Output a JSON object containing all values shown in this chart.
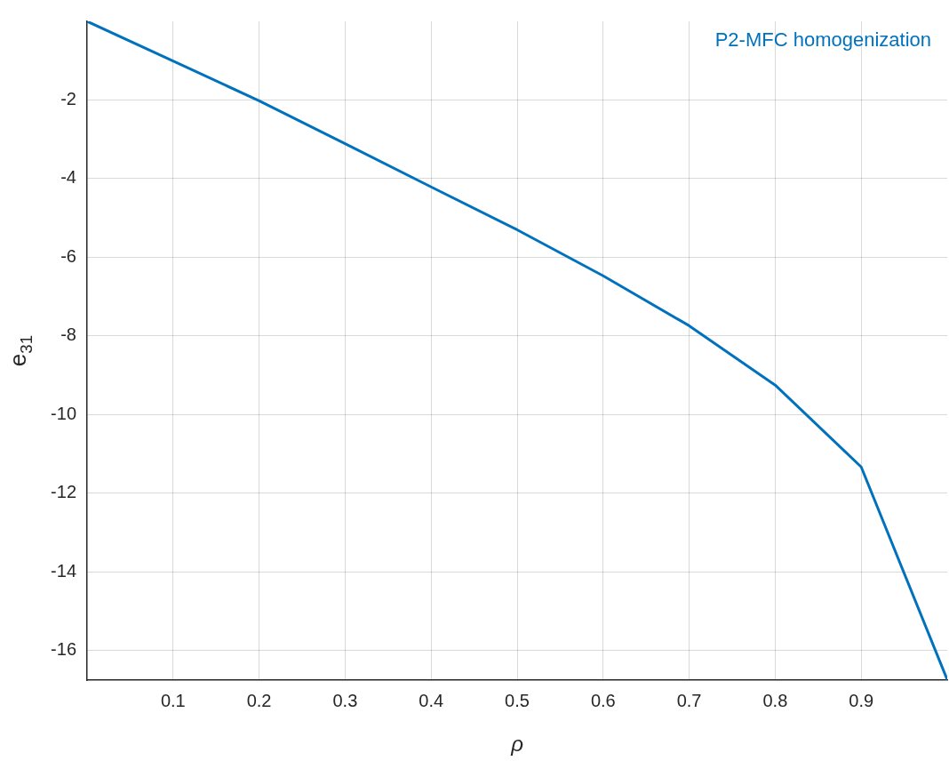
{
  "chart_data": {
    "type": "line",
    "xlabel": "ρ",
    "ylabel": "e$_{31}$",
    "x": [
      0,
      0.1,
      0.2,
      0.3,
      0.4,
      0.5,
      0.6,
      0.7,
      0.8,
      0.9,
      1.0
    ],
    "series": [
      {
        "name": "P2-MFC homogenization",
        "color": "#0072bd",
        "values": [
          0,
          -1.01,
          -2.02,
          -3.11,
          -4.21,
          -5.3,
          -6.47,
          -7.74,
          -9.25,
          -11.33,
          -16.74
        ]
      }
    ],
    "xlim": [
      0,
      1
    ],
    "xticks": [
      0.1,
      0.2,
      0.3,
      0.4,
      0.5,
      0.6,
      0.7,
      0.8,
      0.9
    ],
    "ylim": [
      -16.75,
      0
    ],
    "yticks": [
      -16,
      -14,
      -12,
      -10,
      -8,
      -6,
      -4,
      -2
    ],
    "grid": true,
    "legend": "top right",
    "marker": "none",
    "line_style": "solid"
  }
}
